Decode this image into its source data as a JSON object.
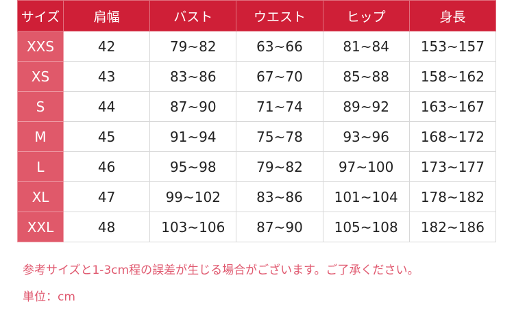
{
  "table": {
    "headers": [
      "サイズ",
      "肩幅",
      "バスト",
      "ウエスト",
      "ヒップ",
      "身長"
    ],
    "rows": [
      [
        "XXS",
        "42",
        "79~82",
        "63~66",
        "81~84",
        "153~157"
      ],
      [
        "XS",
        "43",
        "83~86",
        "67~70",
        "85~88",
        "158~162"
      ],
      [
        "S",
        "44",
        "87~90",
        "71~74",
        "89~92",
        "163~167"
      ],
      [
        "M",
        "45",
        "91~94",
        "75~78",
        "93~96",
        "168~172"
      ],
      [
        "L",
        "46",
        "95~98",
        "79~82",
        "97~100",
        "173~177"
      ],
      [
        "XL",
        "47",
        "99~102",
        "83~86",
        "101~104",
        "178~182"
      ],
      [
        "XXL",
        "48",
        "103~106",
        "87~90",
        "105~108",
        "182~186"
      ]
    ]
  },
  "notes": {
    "disclaimer": "参考サイズと1-3cm程の誤差が生じる場合がございます。ご了承ください。",
    "unit": "単位：cm"
  },
  "colors": {
    "header": "#cf1f37",
    "size_column": "#e0596a",
    "note_text": "#e05a70"
  }
}
